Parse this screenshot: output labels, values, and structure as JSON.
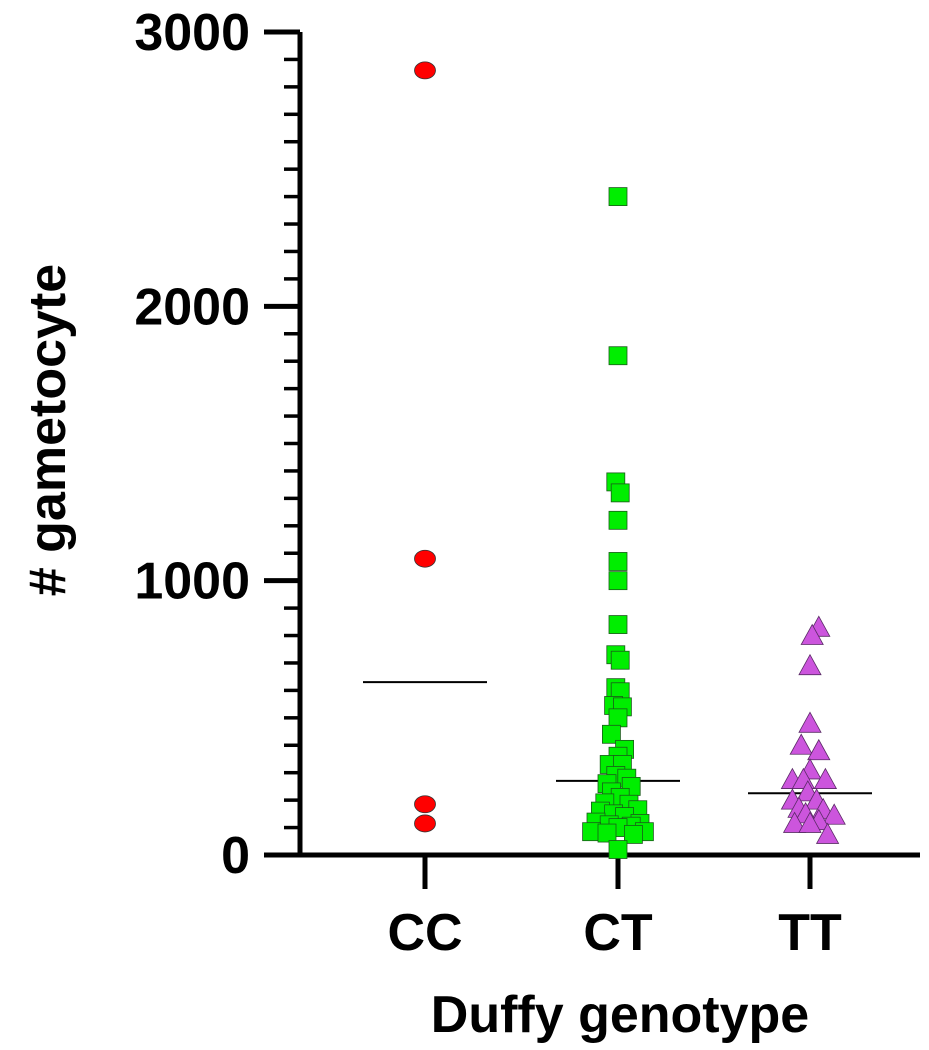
{
  "chart_data": {
    "type": "scatter",
    "xlabel": "Duffy genotype",
    "ylabel": "# gametocyte",
    "ylim": [
      0,
      3000
    ],
    "yticks": [
      0,
      1000,
      2000,
      3000
    ],
    "yticks_labels": [
      "0",
      "1000",
      "2000",
      "3000"
    ],
    "minor_tick_step": 100,
    "grid": false,
    "categories": [
      "CC",
      "CT",
      "TT"
    ],
    "series": [
      {
        "category": "CC",
        "marker": "circle",
        "color": "#ff0000",
        "points": [
          {
            "jitter": 0,
            "y": 2860
          },
          {
            "jitter": 0,
            "y": 1080
          },
          {
            "jitter": 0,
            "y": 185
          },
          {
            "jitter": 0,
            "y": 115
          }
        ],
        "center_line": 630
      },
      {
        "category": "CT",
        "marker": "square",
        "color": "#00ee00",
        "points": [
          {
            "jitter": 0,
            "y": 2400
          },
          {
            "jitter": 0,
            "y": 1820
          },
          {
            "jitter": -0.1,
            "y": 1360
          },
          {
            "jitter": 0.1,
            "y": 1320
          },
          {
            "jitter": 0,
            "y": 1220
          },
          {
            "jitter": 0,
            "y": 1070
          },
          {
            "jitter": 0,
            "y": 1000
          },
          {
            "jitter": 0,
            "y": 840
          },
          {
            "jitter": -0.1,
            "y": 730
          },
          {
            "jitter": 0.1,
            "y": 710
          },
          {
            "jitter": -0.1,
            "y": 610
          },
          {
            "jitter": 0.1,
            "y": 595
          },
          {
            "jitter": -0.2,
            "y": 545
          },
          {
            "jitter": 0.2,
            "y": 540
          },
          {
            "jitter": 0,
            "y": 500
          },
          {
            "jitter": -0.3,
            "y": 440
          },
          {
            "jitter": 0.3,
            "y": 385
          },
          {
            "jitter": 0,
            "y": 360
          },
          {
            "jitter": -0.4,
            "y": 330
          },
          {
            "jitter": 0.2,
            "y": 330
          },
          {
            "jitter": -0.1,
            "y": 290
          },
          {
            "jitter": 0.4,
            "y": 280
          },
          {
            "jitter": -0.5,
            "y": 260
          },
          {
            "jitter": 0.6,
            "y": 250
          },
          {
            "jitter": -0.3,
            "y": 230
          },
          {
            "jitter": 0.1,
            "y": 210
          },
          {
            "jitter": -0.6,
            "y": 190
          },
          {
            "jitter": 0.5,
            "y": 185
          },
          {
            "jitter": -0.8,
            "y": 160
          },
          {
            "jitter": 0.9,
            "y": 165
          },
          {
            "jitter": -0.2,
            "y": 150
          },
          {
            "jitter": 0.3,
            "y": 140
          },
          {
            "jitter": -1.0,
            "y": 120
          },
          {
            "jitter": 1.0,
            "y": 115
          },
          {
            "jitter": -0.4,
            "y": 110
          },
          {
            "jitter": 0.6,
            "y": 105
          },
          {
            "jitter": 0,
            "y": 100
          },
          {
            "jitter": -1.2,
            "y": 85
          },
          {
            "jitter": 1.2,
            "y": 85
          },
          {
            "jitter": -0.5,
            "y": 80
          },
          {
            "jitter": 0.7,
            "y": 75
          },
          {
            "jitter": 0,
            "y": 20
          }
        ],
        "center_line": 270
      },
      {
        "category": "TT",
        "marker": "triangle",
        "color": "#cc55dd",
        "points": [
          {
            "jitter": 0.4,
            "y": 830
          },
          {
            "jitter": 0.1,
            "y": 800
          },
          {
            "jitter": 0,
            "y": 690
          },
          {
            "jitter": 0,
            "y": 480
          },
          {
            "jitter": -0.4,
            "y": 400
          },
          {
            "jitter": 0.4,
            "y": 380
          },
          {
            "jitter": 0,
            "y": 310
          },
          {
            "jitter": -0.8,
            "y": 275
          },
          {
            "jitter": -0.3,
            "y": 275
          },
          {
            "jitter": 0.7,
            "y": 275
          },
          {
            "jitter": -0.1,
            "y": 230
          },
          {
            "jitter": -0.8,
            "y": 200
          },
          {
            "jitter": 0.3,
            "y": 200
          },
          {
            "jitter": -0.5,
            "y": 170
          },
          {
            "jitter": 0.6,
            "y": 165
          },
          {
            "jitter": -0.2,
            "y": 150
          },
          {
            "jitter": 1.1,
            "y": 145
          },
          {
            "jitter": 0.4,
            "y": 125
          },
          {
            "jitter": -0.7,
            "y": 115
          },
          {
            "jitter": 0,
            "y": 115
          },
          {
            "jitter": 0.8,
            "y": 75
          }
        ],
        "center_line": 225
      }
    ]
  }
}
